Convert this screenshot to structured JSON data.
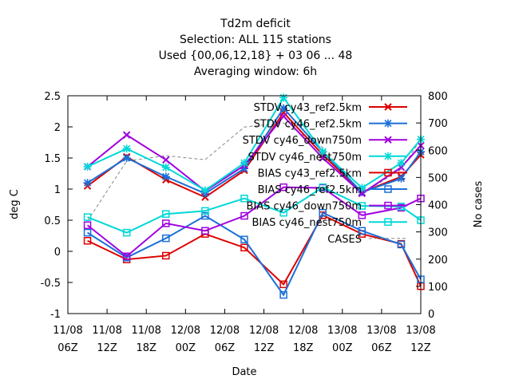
{
  "chart_data": {
    "type": "line",
    "title_lines": [
      "Td2m deficit",
      "Selection: ALL     115 stations",
      "Used {00,06,12,18} + 03 06 ... 48",
      "Averaging window:  6h"
    ],
    "xlabel": "Date",
    "ylabel": "deg C",
    "y2label": "No cases",
    "ylim": [
      -1,
      2.5
    ],
    "y2lim": [
      0,
      800
    ],
    "yticks": [
      "-1",
      "-0.5",
      "0",
      "0.5",
      "1",
      "1.5",
      "2",
      "2.5"
    ],
    "y2ticks": [
      "0",
      "100",
      "200",
      "300",
      "400",
      "500",
      "600",
      "700",
      "800"
    ],
    "xticks": [
      {
        "date": "11/08",
        "hour": "06Z"
      },
      {
        "date": "11/08",
        "hour": "12Z"
      },
      {
        "date": "11/08",
        "hour": "18Z"
      },
      {
        "date": "12/08",
        "hour": "00Z"
      },
      {
        "date": "12/08",
        "hour": "06Z"
      },
      {
        "date": "12/08",
        "hour": "12Z"
      },
      {
        "date": "12/08",
        "hour": "18Z"
      },
      {
        "date": "13/08",
        "hour": "00Z"
      },
      {
        "date": "13/08",
        "hour": "06Z"
      },
      {
        "date": "13/08",
        "hour": "12Z"
      }
    ],
    "x_hours": [
      3,
      9,
      15,
      21,
      27,
      33,
      39,
      45,
      51,
      54
    ],
    "legend_placement": "top-right",
    "grid": false,
    "series": [
      {
        "name": "STDV cy43_ref2.5km",
        "color": "#dd0000",
        "marker": "x",
        "values": [
          1.05,
          1.52,
          1.15,
          0.87,
          1.3,
          2.23,
          1.55,
          0.95,
          1.2,
          1.55
        ]
      },
      {
        "name": "STDV cy46_ref2.5km",
        "color": "#1a70d8",
        "marker": "star",
        "values": [
          1.1,
          1.5,
          1.2,
          0.93,
          1.33,
          2.3,
          1.6,
          0.95,
          1.17,
          1.6
        ]
      },
      {
        "name": "STDV cy46_down750m",
        "color": "#a000e0",
        "marker": "x",
        "values": [
          1.36,
          1.87,
          1.47,
          0.97,
          1.38,
          2.17,
          1.5,
          0.93,
          1.35,
          1.7
        ]
      },
      {
        "name": "STDV cy46_nest750m",
        "color": "#00d8d8",
        "marker": "star",
        "values": [
          1.36,
          1.65,
          1.35,
          0.98,
          1.42,
          2.47,
          1.6,
          1.02,
          1.42,
          1.8
        ]
      },
      {
        "name": "BIAS cy43_ref2.5km",
        "color": "#dd0000",
        "marker": "square",
        "values": [
          0.17,
          -0.13,
          -0.07,
          0.28,
          0.06,
          -0.53,
          0.58,
          0.28,
          0.12,
          -0.56
        ]
      },
      {
        "name": "BIAS cy46_ref2.5km",
        "color": "#1a70d8",
        "marker": "square",
        "values": [
          0.3,
          -0.1,
          0.21,
          0.57,
          0.19,
          -0.7,
          0.62,
          0.33,
          0.11,
          -0.45
        ]
      },
      {
        "name": "BIAS cy46_down750m",
        "color": "#a000e0",
        "marker": "square",
        "values": [
          0.42,
          -0.08,
          0.45,
          0.33,
          0.57,
          1.03,
          1.02,
          0.58,
          0.7,
          0.85
        ]
      },
      {
        "name": "BIAS cy46_nest750m",
        "color": "#00d8d8",
        "marker": "square",
        "values": [
          0.55,
          0.3,
          0.6,
          0.65,
          0.85,
          0.62,
          1.03,
          0.73,
          0.72,
          0.5
        ]
      }
    ],
    "cases_series": {
      "name": "CASES",
      "color": "#888888",
      "values": [
        340,
        560,
        580,
        565,
        685,
        700,
        610,
        440,
        530,
        640
      ]
    }
  }
}
